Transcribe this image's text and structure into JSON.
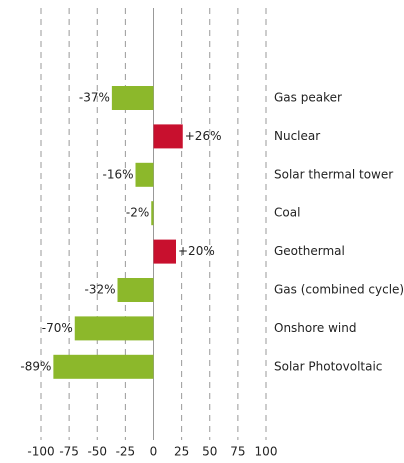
{
  "chart_data": {
    "type": "bar",
    "orientation": "horizontal",
    "categories": [
      "Gas peaker",
      "Nuclear",
      "Solar thermal tower",
      "Coal",
      "Geothermal",
      "Gas (combined cycle)",
      "Onshore wind",
      "Solar Photovoltaic"
    ],
    "values": [
      -37,
      26,
      -16,
      -2,
      20,
      -32,
      -70,
      -89
    ],
    "value_labels": [
      "-37%",
      "+26%",
      "-16%",
      "-2%",
      "+20%",
      "-32%",
      "-70%",
      "-89%"
    ],
    "colors": [
      "#8cb82b",
      "#c8102e",
      "#8cb82b",
      "#8cb82b",
      "#c8102e",
      "#8cb82b",
      "#8cb82b",
      "#8cb82b"
    ],
    "xlim": [
      -100,
      100
    ],
    "xticks": [
      -100,
      -75,
      -50,
      -25,
      0,
      25,
      50,
      75,
      100
    ],
    "grid": true
  }
}
